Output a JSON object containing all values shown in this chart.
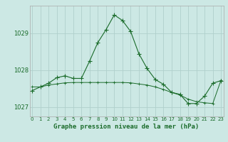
{
  "line1_x": [
    0,
    1,
    2,
    3,
    4,
    5,
    6,
    7,
    8,
    9,
    10,
    11,
    12,
    13,
    14,
    15,
    16,
    17,
    18,
    19,
    20,
    21,
    22,
    23
  ],
  "line1_y": [
    1027.45,
    1027.55,
    1027.65,
    1027.8,
    1027.85,
    1027.78,
    1027.78,
    1028.25,
    1028.75,
    1029.1,
    1029.5,
    1029.35,
    1029.05,
    1028.45,
    1028.05,
    1027.75,
    1027.62,
    1027.4,
    1027.35,
    1027.1,
    1027.1,
    1027.3,
    1027.65,
    1027.72
  ],
  "line2_x": [
    0,
    1,
    2,
    3,
    4,
    5,
    6,
    7,
    8,
    9,
    10,
    11,
    12,
    13,
    14,
    15,
    16,
    17,
    18,
    19,
    20,
    21,
    22,
    23
  ],
  "line2_y": [
    1027.55,
    1027.55,
    1027.6,
    1027.63,
    1027.66,
    1027.67,
    1027.67,
    1027.67,
    1027.67,
    1027.67,
    1027.67,
    1027.67,
    1027.66,
    1027.63,
    1027.6,
    1027.55,
    1027.48,
    1027.4,
    1027.33,
    1027.22,
    1027.15,
    1027.12,
    1027.1,
    1027.73
  ],
  "bg_color": "#cce8e4",
  "grid_color": "#b0d0cc",
  "line_color": "#1a6b2a",
  "xlabel": "Graphe pression niveau de la mer (hPa)",
  "xtick_labels": [
    "0",
    "1",
    "2",
    "3",
    "4",
    "5",
    "6",
    "7",
    "8",
    "9",
    "10",
    "11",
    "12",
    "13",
    "14",
    "15",
    "16",
    "17",
    "18",
    "19",
    "20",
    "21",
    "22",
    "23"
  ],
  "ytick_values": [
    1027,
    1028,
    1029
  ],
  "ytick_labels": [
    "1027",
    "1028",
    "1029"
  ],
  "ylim": [
    1026.75,
    1029.75
  ],
  "xlim": [
    -0.3,
    23.3
  ]
}
